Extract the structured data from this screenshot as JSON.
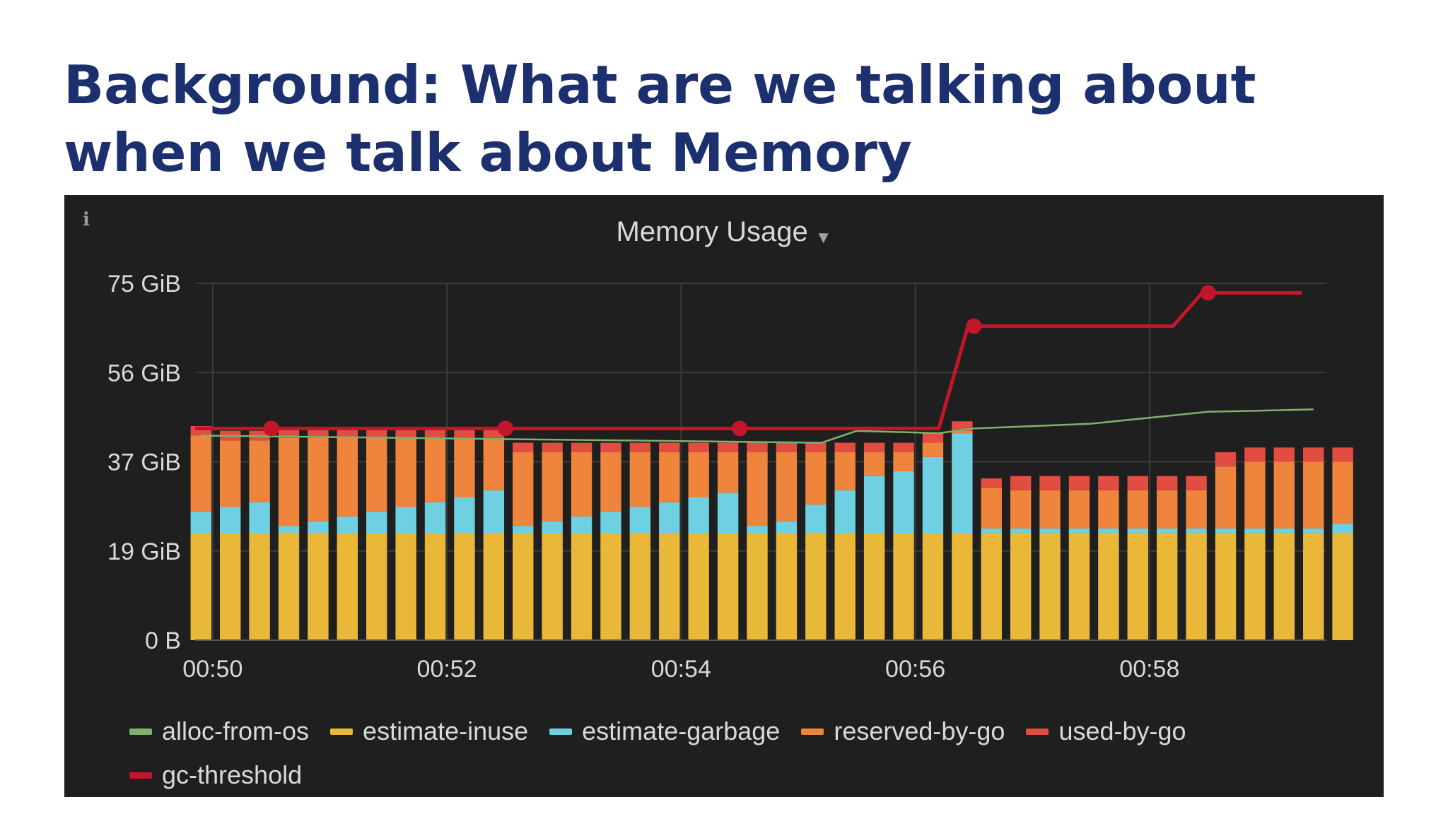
{
  "slide": {
    "title": "Background: What are we talking about when we talk about Memory"
  },
  "panel": {
    "info_icon": "i",
    "title": "Memory Usage",
    "title_caret": "▼"
  },
  "colors": {
    "alloc-from-os": "#7eb26d",
    "estimate-inuse": "#eab839",
    "estimate-garbage": "#6ed0e0",
    "reserved-by-go": "#ef843c",
    "used-by-go": "#e24d42",
    "gc-threshold": "#c4162a",
    "panel_bg": "#1f1f1f",
    "grid": "#3a3a3a",
    "text": "#d8d9da"
  },
  "legend": {
    "row1": [
      "alloc-from-os",
      "estimate-inuse",
      "estimate-garbage",
      "reserved-by-go",
      "used-by-go"
    ],
    "row2": [
      "gc-threshold"
    ]
  },
  "chart_data": {
    "type": "bar",
    "stacked": true,
    "title": "Memory Usage",
    "y_ticks": [
      "0 B",
      "19 GiB",
      "37 GiB",
      "56 GiB",
      "75 GiB"
    ],
    "ylim": [
      0,
      75
    ],
    "y_unit": "GiB",
    "x_ticks": [
      "00:50",
      "00:52",
      "00:54",
      "00:56",
      "00:58"
    ],
    "x_range_minutes": [
      49.85,
      59.45
    ],
    "x_tick_minutes": [
      50,
      52,
      54,
      56,
      58
    ],
    "bar_start_minute": 49.9,
    "bar_step_minutes": 0.25,
    "grid": true,
    "legend_position": "bottom",
    "series": [
      {
        "name": "estimate-inuse",
        "values": [
          22.5,
          22.5,
          22.5,
          22.5,
          22.5,
          22.5,
          22.5,
          22.5,
          22.5,
          22.5,
          22.5,
          22.5,
          22.5,
          22.5,
          22.5,
          22.5,
          22.5,
          22.5,
          22.5,
          22.5,
          22.5,
          22.5,
          22.5,
          22.5,
          22.5,
          22.5,
          22.5,
          22.5,
          22.5,
          22.5,
          22.5,
          22.5,
          22.5,
          22.5,
          22.5,
          22.5,
          22.5,
          22.5,
          22.5,
          22.5
        ]
      },
      {
        "name": "estimate-garbage",
        "values": [
          4.5,
          5.5,
          6.5,
          1.5,
          2.5,
          3.5,
          4.5,
          5.5,
          6.5,
          7.5,
          9,
          1.5,
          2.5,
          3.5,
          4.5,
          5.5,
          6.5,
          7.5,
          8.5,
          1.5,
          2.5,
          6,
          9,
          12,
          13,
          16,
          21,
          1,
          1,
          1,
          1,
          1,
          1,
          1,
          1,
          1,
          1,
          1,
          1,
          2
        ]
      },
      {
        "name": "reserved-by-go",
        "values": [
          16,
          14,
          13,
          18.5,
          17.5,
          16.5,
          15.5,
          14.5,
          13.5,
          12.5,
          11,
          15.5,
          14.5,
          13.5,
          12.5,
          11.5,
          10.5,
          9.5,
          8.5,
          15.5,
          14.5,
          11,
          8,
          5,
          4,
          3,
          0.5,
          8.5,
          8,
          8,
          8,
          8,
          8,
          8,
          8,
          13,
          14,
          14,
          14,
          13
        ]
      },
      {
        "name": "used-by-go",
        "values": [
          2,
          2,
          2,
          2,
          2,
          2,
          2,
          2,
          2,
          2,
          2,
          2,
          2,
          2,
          2,
          2,
          2,
          2,
          2,
          2,
          2,
          2,
          2,
          2,
          2,
          2,
          2,
          2,
          3,
          3,
          3,
          3,
          3,
          3,
          3,
          3,
          3,
          3,
          3,
          3
        ]
      },
      {
        "name": "alloc-from-os",
        "type": "line",
        "x": [
          49.9,
          55.2,
          55.5,
          56.2,
          56.5,
          57.5,
          58.5,
          59.4
        ],
        "values": [
          43,
          41.5,
          44,
          43.5,
          44.5,
          45.5,
          48,
          48.5
        ]
      },
      {
        "name": "gc-threshold",
        "type": "line",
        "x": [
          49.85,
          56.2,
          56.45,
          58.2,
          58.45,
          59.3
        ],
        "values": [
          44.5,
          44.5,
          66,
          66,
          73,
          73
        ],
        "markers": [
          [
            50.5,
            44.5
          ],
          [
            52.5,
            44.5
          ],
          [
            54.5,
            44.5
          ],
          [
            56.5,
            66
          ],
          [
            58.5,
            73
          ]
        ]
      }
    ]
  }
}
